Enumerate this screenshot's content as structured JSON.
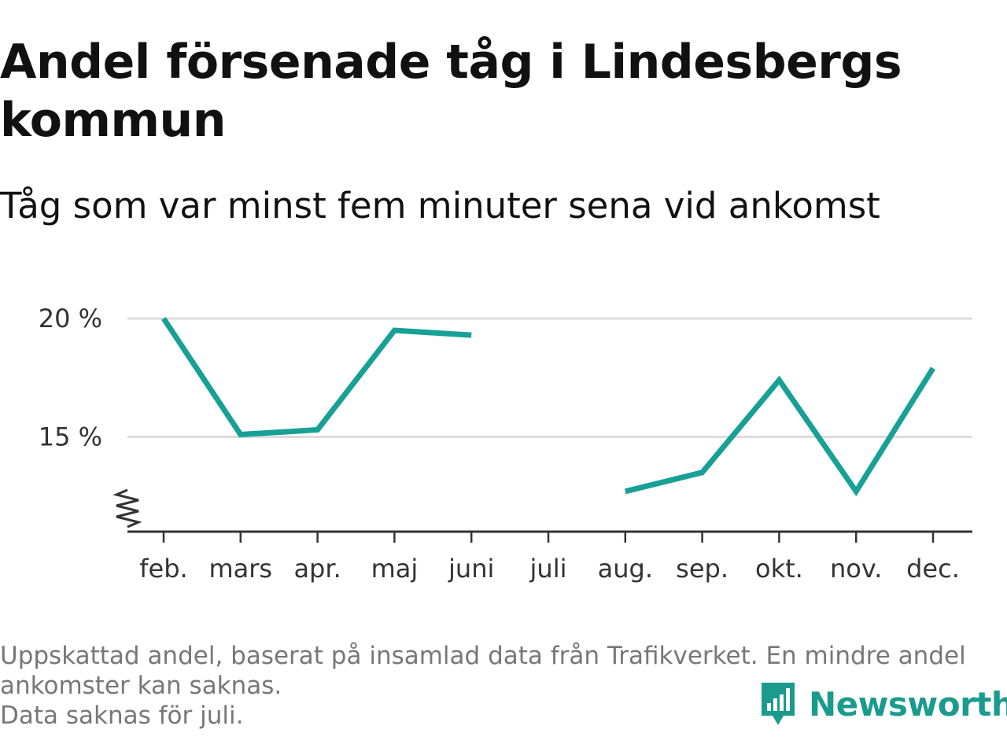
{
  "title": "Andel försenade tåg i Lindesbergs kommun",
  "subtitle": "Tåg som var minst fem minuter sena vid ankomst",
  "chart_data": {
    "type": "line",
    "categories": [
      "feb.",
      "mars",
      "apr.",
      "maj",
      "juni",
      "juli",
      "aug.",
      "sep.",
      "okt.",
      "nov.",
      "dec."
    ],
    "series": [
      {
        "values": [
          20.0,
          15.1,
          15.3,
          19.5,
          19.3,
          null,
          12.7,
          13.5,
          17.4,
          12.7,
          17.9
        ]
      }
    ],
    "ylim": [
      11.0,
      20.0
    ],
    "yticks": [
      15,
      20
    ],
    "ytick_labels": [
      "15 %",
      "20 %"
    ],
    "y_axis_break": true,
    "grid": true,
    "line_color": "#17a096"
  },
  "footnotes": [
    "Uppskattad andel, baserat på insamlad data från Trafikverket. En mindre andel ankomster kan saknas.",
    "Data saknas för juli."
  ],
  "brand": {
    "name": "Newsworthy",
    "color": "#1a9b8e"
  }
}
